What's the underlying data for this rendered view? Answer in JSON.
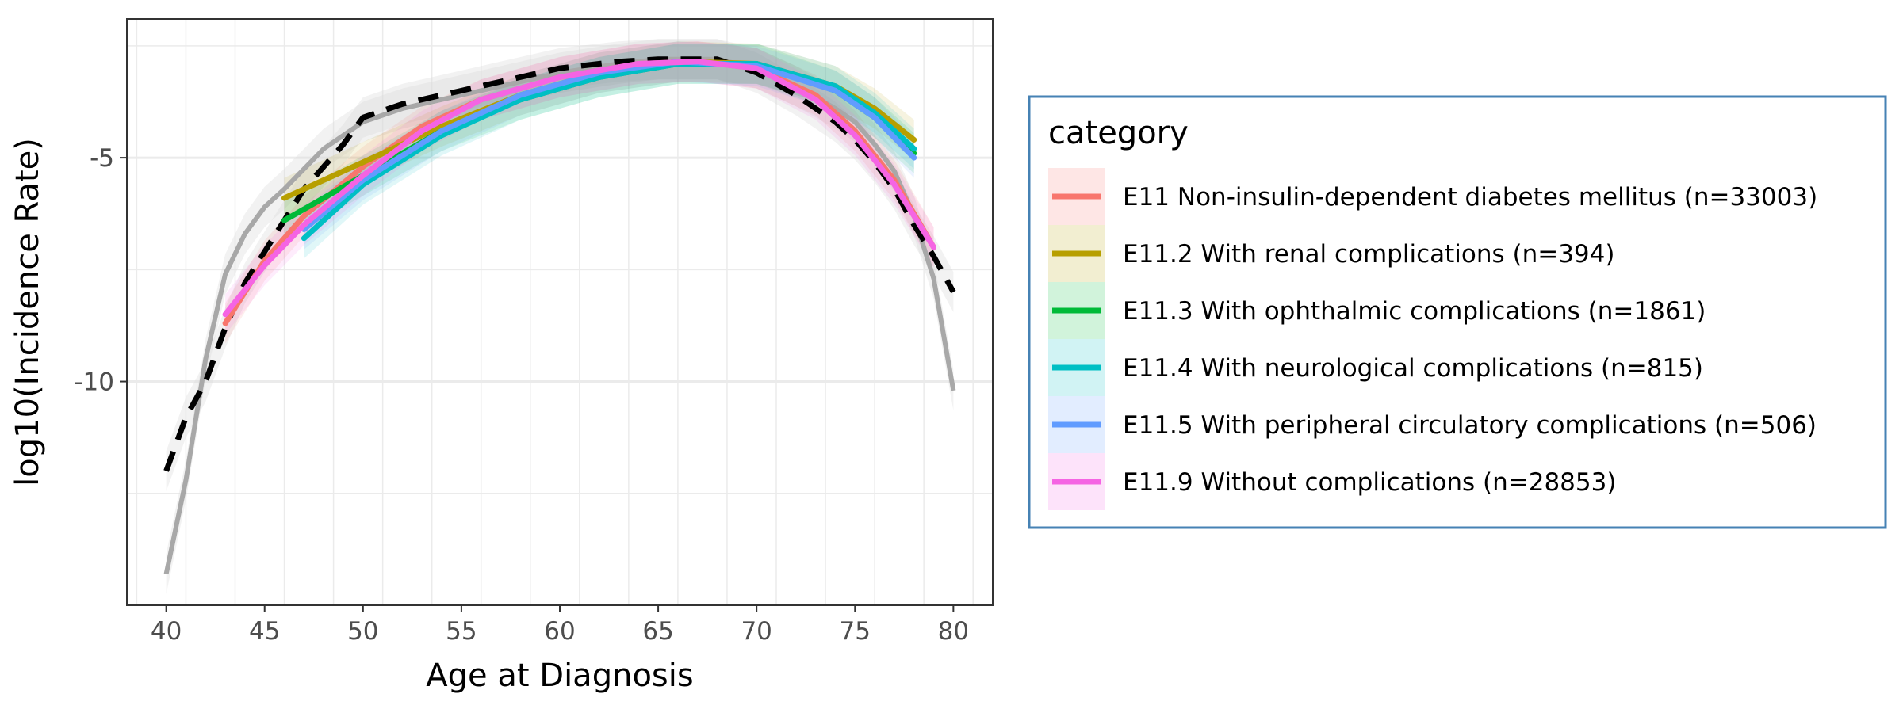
{
  "chart_data": {
    "type": "line",
    "xlabel": "Age at Diagnosis",
    "ylabel": "log10(Incidence Rate)",
    "xlim": [
      38,
      82
    ],
    "ylim": [
      -15,
      -1.9
    ],
    "x_ticks": [
      40,
      45,
      50,
      55,
      60,
      65,
      70,
      75,
      80
    ],
    "x_tick_labels": [
      "40",
      "45",
      "50",
      "55",
      "60",
      "65",
      "70",
      "75",
      "80"
    ],
    "y_ticks": [
      -5,
      -10
    ],
    "y_tick_labels": [
      "-5",
      "-10"
    ],
    "grid": true,
    "legend": {
      "title": "category",
      "position": "right"
    },
    "reference_lines": [
      {
        "style": "solid-gray",
        "x": [
          40,
          41,
          42,
          43,
          44,
          45,
          46,
          48,
          50,
          52,
          55,
          58,
          60,
          63,
          65,
          68,
          70,
          72,
          74,
          75,
          76,
          77,
          78,
          79,
          80
        ],
        "y": [
          -14.3,
          -12.2,
          -9.5,
          -7.6,
          -6.7,
          -6.1,
          -5.7,
          -4.8,
          -4.2,
          -3.9,
          -3.6,
          -3.3,
          -3.1,
          -2.9,
          -2.8,
          -2.8,
          -3.0,
          -3.4,
          -3.9,
          -4.2,
          -4.7,
          -5.3,
          -6.3,
          -7.7,
          -10.2
        ]
      },
      {
        "style": "dashed-black",
        "x": [
          40,
          41,
          42,
          43,
          44,
          45,
          46,
          47,
          48,
          49,
          50,
          52,
          55,
          58,
          60,
          63,
          65,
          68,
          70,
          72,
          74,
          75,
          76,
          77,
          78,
          79,
          80
        ],
        "y": [
          -12.0,
          -10.8,
          -10.0,
          -8.8,
          -7.8,
          -7.1,
          -6.4,
          -5.7,
          -5.2,
          -4.7,
          -4.1,
          -3.8,
          -3.5,
          -3.2,
          -3.0,
          -2.85,
          -2.8,
          -2.8,
          -3.1,
          -3.6,
          -4.2,
          -4.6,
          -5.1,
          -5.7,
          -6.5,
          -7.2,
          -8.0
        ]
      }
    ],
    "series": [
      {
        "name": "E11 Non-insulin-dependent diabetes mellitus (n=33003)",
        "color": "#F8766D",
        "x": [
          43,
          45,
          47,
          50,
          53,
          56,
          60,
          64,
          67,
          70,
          73,
          75,
          77,
          79
        ],
        "y": [
          -8.7,
          -7.3,
          -6.3,
          -5.2,
          -4.3,
          -3.7,
          -3.2,
          -2.9,
          -2.85,
          -3.0,
          -3.6,
          -4.4,
          -5.5,
          -7.0
        ]
      },
      {
        "name": "E11.2 With renal complications (n=394)",
        "color": "#B79F00",
        "x": [
          46,
          50,
          54,
          58,
          62,
          66,
          70,
          74,
          76,
          78
        ],
        "y": [
          -5.9,
          -5.1,
          -4.3,
          -3.6,
          -3.1,
          -2.85,
          -2.9,
          -3.4,
          -3.9,
          -4.6
        ]
      },
      {
        "name": "E11.3 With ophthalmic complications (n=1861)",
        "color": "#00BA38",
        "x": [
          46,
          50,
          54,
          58,
          62,
          66,
          70,
          74,
          76,
          78
        ],
        "y": [
          -6.4,
          -5.4,
          -4.4,
          -3.7,
          -3.2,
          -2.9,
          -2.9,
          -3.5,
          -4.1,
          -4.9
        ]
      },
      {
        "name": "E11.4 With neurological complications (n=815)",
        "color": "#00BFC4",
        "x": [
          47,
          50,
          54,
          58,
          62,
          66,
          70,
          74,
          76,
          78
        ],
        "y": [
          -6.8,
          -5.6,
          -4.5,
          -3.7,
          -3.2,
          -2.9,
          -2.9,
          -3.4,
          -4.0,
          -4.8
        ]
      },
      {
        "name": "E11.5 With peripheral circulatory complications (n=506)",
        "color": "#619CFF",
        "x": [
          47,
          50,
          54,
          58,
          62,
          66,
          70,
          74,
          76,
          78
        ],
        "y": [
          -6.6,
          -5.5,
          -4.4,
          -3.6,
          -3.1,
          -2.85,
          -2.95,
          -3.5,
          -4.1,
          -5.0
        ]
      },
      {
        "name": "E11.9 Without complications (n=28853)",
        "color": "#F564E3",
        "x": [
          43,
          45,
          47,
          50,
          53,
          56,
          60,
          64,
          67,
          70,
          73,
          75,
          77,
          79
        ],
        "y": [
          -8.5,
          -7.4,
          -6.5,
          -5.4,
          -4.4,
          -3.7,
          -3.2,
          -2.9,
          -2.85,
          -3.0,
          -3.7,
          -4.5,
          -5.6,
          -7.0
        ]
      }
    ]
  }
}
